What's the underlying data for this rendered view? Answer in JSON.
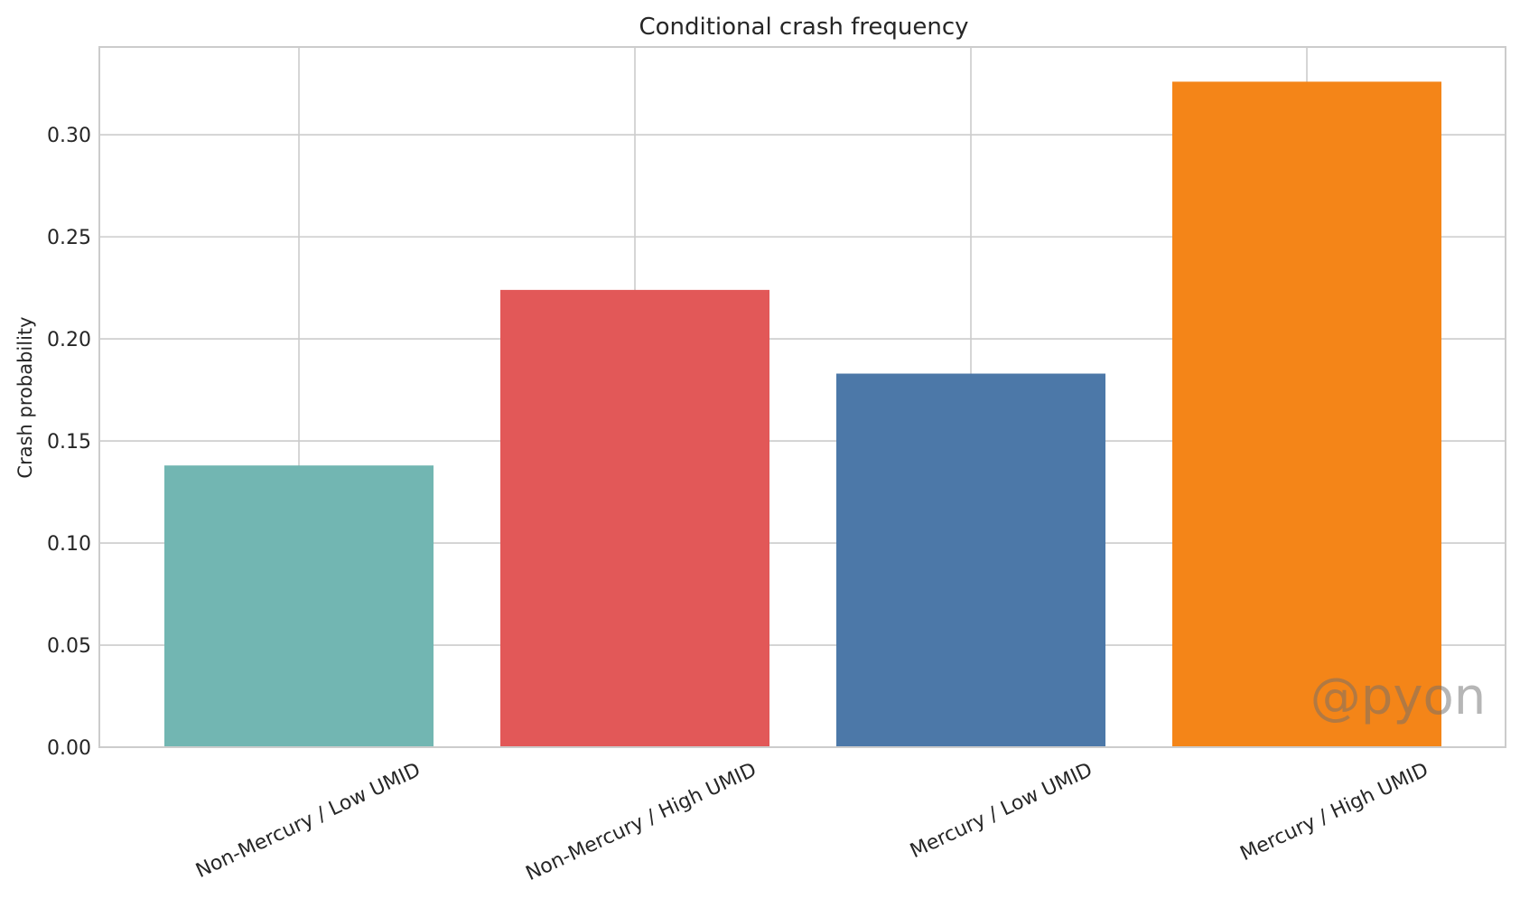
{
  "chart_data": {
    "type": "bar",
    "title": "Conditional crash frequency",
    "xlabel": "",
    "ylabel": "Crash probability",
    "categories": [
      "Non-Mercury / Low UMID",
      "Non-Mercury / High UMID",
      "Mercury / Low UMID",
      "Mercury / High UMID"
    ],
    "values": [
      0.138,
      0.224,
      0.183,
      0.326
    ],
    "bar_colors": [
      "#72b6b2",
      "#e25858",
      "#4c78a8",
      "#f48518"
    ],
    "ylim": [
      0,
      0.343
    ],
    "yticks": [
      0.0,
      0.05,
      0.1,
      0.15,
      0.2,
      0.25,
      0.3
    ],
    "ytick_labels": [
      "0.00",
      "0.05",
      "0.10",
      "0.15",
      "0.20",
      "0.25",
      "0.30"
    ],
    "grid": true,
    "watermark": "@pyon"
  }
}
